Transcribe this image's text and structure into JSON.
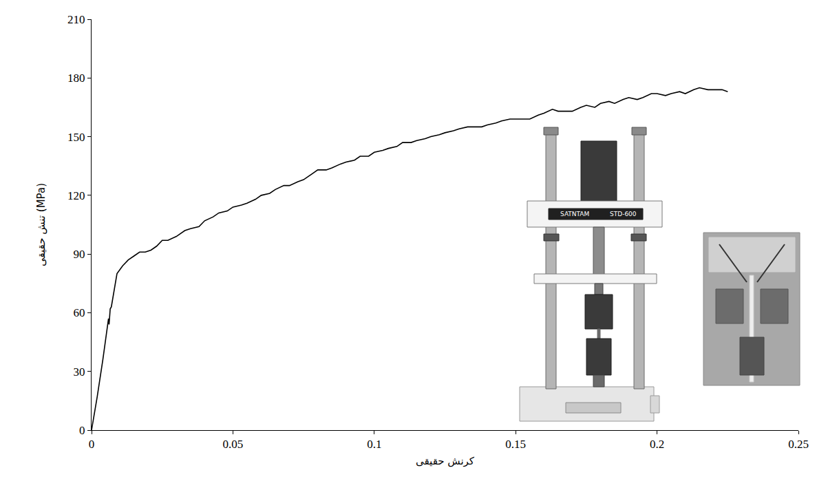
{
  "chart_data": {
    "type": "line",
    "x_label": "کرنش حقیقی",
    "y_label": "تنش حقیقی (MPa)",
    "annotations": [
      "SATNTAM",
      "STD-600"
    ],
    "x": [
      0,
      0.002,
      0.004,
      0.006,
      0.0062,
      0.0066,
      0.007,
      0.008,
      0.009,
      0.011,
      0.013,
      0.015,
      0.017,
      0.019,
      0.021,
      0.023,
      0.025,
      0.027,
      0.03,
      0.033,
      0.035,
      0.038,
      0.04,
      0.043,
      0.045,
      0.048,
      0.05,
      0.053,
      0.055,
      0.058,
      0.06,
      0.063,
      0.065,
      0.068,
      0.07,
      0.073,
      0.075,
      0.078,
      0.08,
      0.083,
      0.085,
      0.088,
      0.09,
      0.093,
      0.095,
      0.098,
      0.1,
      0.103,
      0.105,
      0.108,
      0.11,
      0.113,
      0.115,
      0.118,
      0.12,
      0.123,
      0.125,
      0.128,
      0.13,
      0.133,
      0.135,
      0.138,
      0.14,
      0.143,
      0.145,
      0.148,
      0.15,
      0.153,
      0.155,
      0.158,
      0.16,
      0.163,
      0.165,
      0.168,
      0.17,
      0.173,
      0.175,
      0.178,
      0.18,
      0.183,
      0.185,
      0.188,
      0.19,
      0.193,
      0.195,
      0.198,
      0.2,
      0.203,
      0.205,
      0.208,
      0.21,
      0.213,
      0.215,
      0.218,
      0.22,
      0.223,
      0.225
    ],
    "values": [
      0,
      17,
      36,
      57,
      54,
      62,
      63,
      72,
      80,
      84,
      87,
      89,
      91,
      91,
      92,
      94,
      97,
      97,
      99,
      102,
      103,
      104,
      107,
      109,
      111,
      112,
      114,
      115,
      116,
      118,
      120,
      121,
      123,
      125,
      125,
      127,
      128,
      131,
      133,
      133,
      134,
      136,
      137,
      138,
      140,
      140,
      142,
      143,
      144,
      145,
      147,
      147,
      148,
      149,
      150,
      151,
      152,
      153,
      154,
      155,
      155,
      155,
      156,
      157,
      158,
      159,
      159,
      159,
      159,
      161,
      162,
      164,
      163,
      163,
      163,
      165,
      166,
      165,
      167,
      168,
      167,
      169,
      170,
      169,
      170,
      172,
      172,
      171,
      172,
      173,
      172,
      174,
      175,
      174,
      174,
      174,
      173
    ],
    "color": "#000000",
    "xlim": [
      0,
      0.25
    ],
    "xticks": [
      0,
      0.05,
      0.1,
      0.15,
      0.2,
      0.25
    ],
    "ylim": [
      0,
      210
    ],
    "yticks": [
      0,
      30,
      60,
      90,
      120,
      150,
      180,
      210
    ],
    "grid": false
  }
}
